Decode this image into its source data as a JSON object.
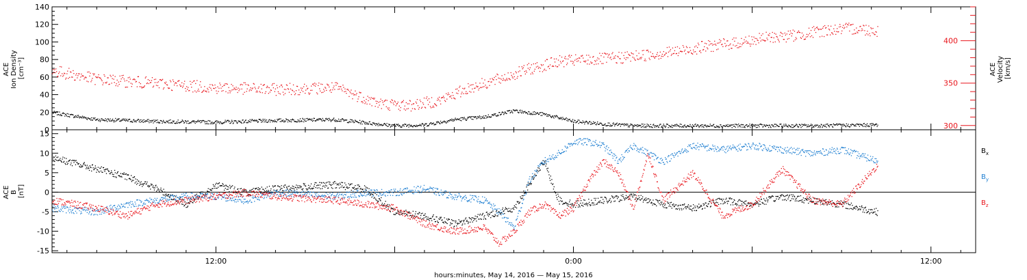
{
  "chart_data": [
    {
      "type": "scatter",
      "panel": "top",
      "x_axis": {
        "unit": "hours relative to 2016-05-15 00:00",
        "range": [
          -17.5,
          13.5
        ],
        "tick_labels": [
          {
            "x": -12,
            "label": "12:00"
          },
          {
            "x": 0,
            "label": "0:00"
          },
          {
            "x": 12,
            "label": "12:00"
          }
        ]
      },
      "left_axis": {
        "label_lines": [
          "ACE",
          "Ion Density",
          "[cm⁻³]"
        ],
        "range": [
          0,
          140
        ],
        "ticks": [
          0,
          20,
          40,
          60,
          80,
          100,
          120,
          140
        ]
      },
      "right_axis": {
        "label_lines": [
          "ACE",
          "Velocity",
          "[km/s]"
        ],
        "range": [
          295,
          440
        ],
        "ticks": [
          300,
          350,
          400
        ],
        "color": "#e8141b"
      },
      "series": [
        {
          "name": "Ion Density",
          "axis": "left",
          "color": "#000000",
          "x": [
            -17.5,
            -16,
            -14,
            -12,
            -10,
            -8,
            -6,
            -5,
            -4,
            -3,
            -2,
            -1,
            0,
            1,
            2,
            4,
            6,
            8,
            10.2
          ],
          "y": [
            20,
            12,
            10,
            9,
            11,
            12,
            5,
            6,
            12,
            15,
            22,
            18,
            10,
            7,
            5,
            5,
            5,
            5,
            6
          ]
        },
        {
          "name": "Velocity",
          "axis": "right",
          "color": "#e8141b",
          "x": [
            -17.5,
            -16,
            -14,
            -12,
            -10,
            -8,
            -7.2,
            -6.5,
            -5.5,
            -4.5,
            -3.5,
            -2.5,
            -1.5,
            -0.5,
            0.5,
            1.5,
            2.5,
            3.5,
            4.5,
            5.5,
            6.5,
            7.5,
            8.5,
            9.5,
            10.2
          ],
          "y": [
            365,
            355,
            350,
            345,
            343,
            345,
            335,
            326,
            324,
            330,
            345,
            355,
            367,
            376,
            378,
            380,
            384,
            388,
            394,
            398,
            404,
            407,
            413,
            415,
            412
          ]
        }
      ]
    },
    {
      "type": "line",
      "panel": "bottom",
      "x_axis": {
        "title": "hours:minutes, May 14, 2016 — May 15, 2016",
        "range": [
          -17.5,
          13.5
        ],
        "tick_labels": [
          {
            "x": -12,
            "label": "12:00"
          },
          {
            "x": 0,
            "label": "0:00"
          },
          {
            "x": 12,
            "label": "12:00"
          }
        ]
      },
      "y_axis": {
        "label_lines": [
          "ACE",
          "B",
          "[nT]"
        ],
        "range": [
          -15.5,
          16
        ],
        "ticks": [
          -15,
          -10,
          -5,
          0,
          5,
          10,
          15
        ]
      },
      "series": [
        {
          "name": "Bx",
          "name_main": "B",
          "name_sub": "x",
          "color": "#000000",
          "x": [
            -17.5,
            -17,
            -16,
            -15,
            -14,
            -13,
            -12,
            -11,
            -10,
            -8,
            -7,
            -6,
            -5,
            -4,
            -3,
            -2,
            -1.5,
            -1,
            -0.5,
            0,
            1,
            2,
            3,
            4,
            5,
            6,
            7,
            8,
            9,
            10.2
          ],
          "y": [
            9,
            8,
            6,
            4,
            1,
            -3,
            2,
            0,
            1,
            2,
            1,
            -5,
            -6,
            -8,
            -6,
            -4,
            2,
            8,
            -2,
            -3,
            -2,
            -1,
            -3,
            -4,
            -2,
            -3,
            -1,
            -2,
            -3,
            -5
          ]
        },
        {
          "name": "By",
          "name_main": "B",
          "name_sub": "y",
          "color": "#1f7fd1",
          "x": [
            -17.5,
            -16,
            -15,
            -14,
            -13,
            -12,
            -11,
            -10,
            -8,
            -7,
            -6,
            -5,
            -4,
            -3,
            -2.5,
            -2,
            -1.5,
            -1,
            -0.5,
            0,
            0.5,
            1,
            1.5,
            2,
            2.5,
            3,
            4,
            5,
            6,
            7,
            8,
            9,
            10.2
          ],
          "y": [
            -4,
            -5,
            -3,
            -2,
            -1,
            -1,
            -2,
            0,
            -1,
            0,
            0,
            1,
            -1,
            -2,
            -5,
            -9,
            3,
            8,
            10,
            13,
            13,
            12,
            8,
            12,
            10,
            8,
            12,
            11,
            12,
            11,
            10,
            11,
            8
          ]
        },
        {
          "name": "Bz",
          "name_main": "B",
          "name_sub": "z",
          "color": "#e8141b",
          "x": [
            -17.5,
            -16,
            -15,
            -14,
            -13,
            -12,
            -11,
            -10,
            -8,
            -7,
            -6,
            -5,
            -4,
            -3,
            -2.5,
            -2,
            -1.5,
            -1,
            -0.5,
            0,
            0.5,
            1,
            1.5,
            2,
            2.5,
            3,
            4,
            5,
            6,
            7,
            8,
            9,
            10.2
          ],
          "y": [
            -2,
            -4,
            -6,
            -3,
            -2,
            -1,
            0,
            -1,
            -2,
            -3,
            -4,
            -8,
            -10,
            -9,
            -13,
            -10,
            -5,
            -3,
            -6,
            -4,
            3,
            8,
            5,
            -4,
            10,
            -2,
            5,
            -6,
            -3,
            6,
            -2,
            -3,
            7
          ]
        }
      ]
    }
  ],
  "colors": {
    "black": "#000000",
    "red": "#e8141b",
    "blue": "#1f7fd1"
  }
}
